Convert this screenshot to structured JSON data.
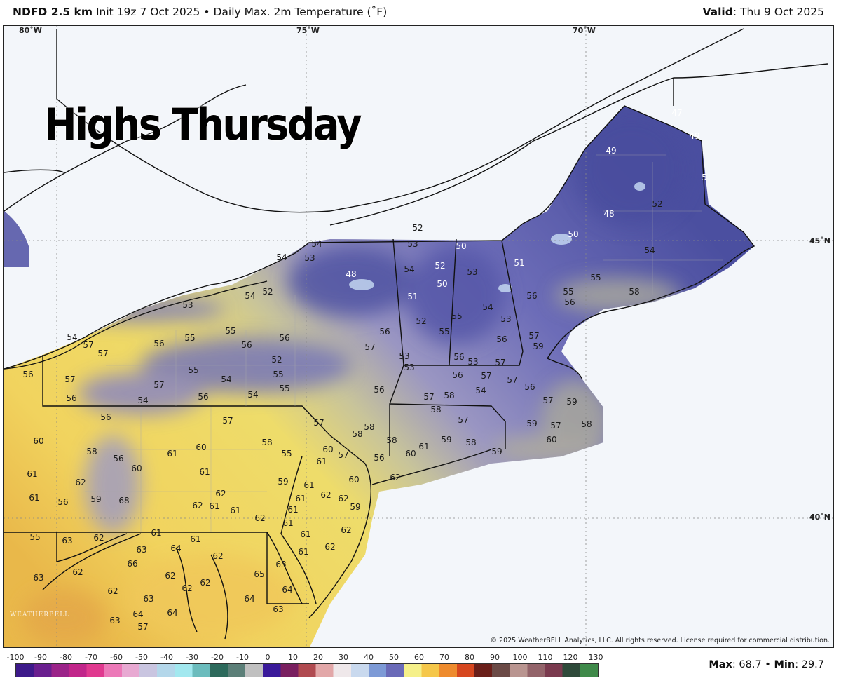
{
  "header": {
    "model": "NDFD 2.5 km",
    "init": "Init 19z 7 Oct 2025",
    "separator": "•",
    "product": "Daily Max. 2m Temperature (˚F)",
    "valid_label": "Valid",
    "valid_value": ": Thu 9 Oct 2025"
  },
  "headline": "Highs Thursday",
  "graticule": {
    "lon_labels": [
      "80˚W",
      "75˚W",
      "70˚W"
    ],
    "lat_labels": [
      "45˚N",
      "40˚N"
    ]
  },
  "temperature_labels": [
    "47",
    "49",
    "49",
    "5",
    "48",
    "52",
    "50",
    "54",
    "52",
    "53",
    "50",
    "54",
    "54",
    "53",
    "48",
    "54",
    "52",
    "53",
    "51",
    "50",
    "55",
    "55",
    "56",
    "58",
    "51",
    "56",
    "52",
    "54",
    "53",
    "54",
    "55",
    "52",
    "53",
    "55",
    "56",
    "55",
    "56",
    "55",
    "56",
    "56",
    "57",
    "56",
    "57",
    "59",
    "54",
    "57",
    "57",
    "52",
    "53",
    "56",
    "53",
    "57",
    "53",
    "56",
    "55",
    "55",
    "54",
    "56",
    "57",
    "57",
    "57",
    "57",
    "55",
    "56",
    "54",
    "56",
    "56",
    "54",
    "56",
    "54",
    "57",
    "58",
    "57",
    "59",
    "56",
    "57",
    "57",
    "58",
    "57",
    "59",
    "57",
    "58",
    "58",
    "58",
    "60",
    "58",
    "59",
    "58",
    "58",
    "61",
    "60",
    "60",
    "57",
    "58",
    "61",
    "60",
    "55",
    "56",
    "61",
    "59",
    "60",
    "56",
    "60",
    "61",
    "61",
    "62",
    "60",
    "62",
    "59",
    "61",
    "62",
    "62",
    "62",
    "61",
    "61",
    "56",
    "59",
    "68",
    "62",
    "61",
    "61",
    "61",
    "59",
    "62",
    "61",
    "62",
    "55",
    "63",
    "62",
    "61",
    "61",
    "61",
    "62",
    "63",
    "64",
    "62",
    "61",
    "66",
    "62",
    "63",
    "62",
    "65",
    "63",
    "62",
    "62",
    "62",
    "64",
    "63",
    "64",
    "63",
    "64",
    "64",
    "63",
    "57"
  ],
  "colors": {
    "cold_high": "#4b4fa0",
    "mid": "#8a88c4",
    "neutral": "#b0ad9c",
    "warm": "#eedc6a",
    "hot": "#e9b84a",
    "ocean": "#f3f6fa"
  },
  "copyright": "© 2025 WeatherBELL Analytics, LLC. All rights reserved. License required for commercial distribution.",
  "watermark": "WEATHERBELL",
  "colorbar": {
    "ticks": [
      "-100",
      "-90",
      "-80",
      "-70",
      "-60",
      "-50",
      "-40",
      "-30",
      "-20",
      "-10",
      "0",
      "10",
      "20",
      "30",
      "40",
      "50",
      "60",
      "70",
      "80",
      "90",
      "100",
      "110",
      "120",
      "130"
    ],
    "colors": [
      "#3d1a8a",
      "#6a1f8f",
      "#9b2489",
      "#c1268a",
      "#e0398f",
      "#ec79b8",
      "#e8a9d2",
      "#c9c5e0",
      "#b4d7ea",
      "#a2e8ef",
      "#6bbcbd",
      "#2d6a5c",
      "#5c7f78",
      "#c0c0c0",
      "#3a1a9a",
      "#7a2060",
      "#b04a50",
      "#e2a7a8",
      "#efe8ea",
      "#c9d9ee",
      "#7d9ad6",
      "#6a6ab8",
      "#f5f08a",
      "#f5c74a",
      "#ee8b2e",
      "#d6471f",
      "#6a1f1a",
      "#6b4a46",
      "#b99590",
      "#93646a",
      "#7a3a4e",
      "#2f4a3a",
      "#3f8a4a"
    ]
  },
  "stats": {
    "max_label": "Max",
    "max_value": ": 68.7",
    "sep": " • ",
    "min_label": "Min",
    "min_value": ": 29.7"
  }
}
